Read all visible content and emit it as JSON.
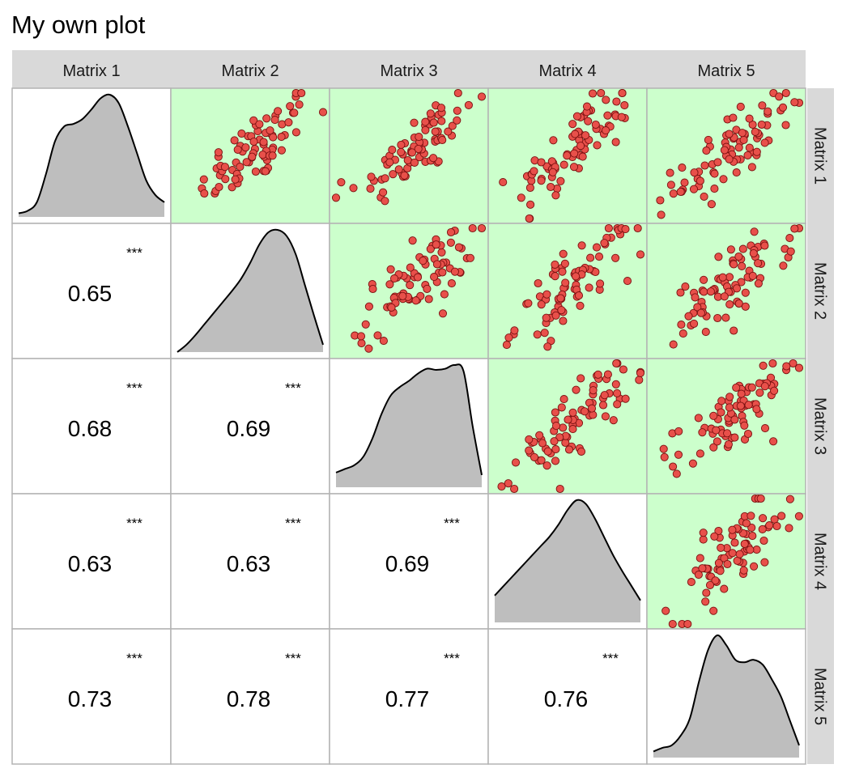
{
  "title": "My own plot",
  "chart_data": {
    "type": "scatter-matrix",
    "title": "My own plot",
    "variables": [
      "Matrix 1",
      "Matrix 2",
      "Matrix 3",
      "Matrix 4",
      "Matrix 5"
    ],
    "lower_panels": "correlation",
    "diagonal_panels": "density",
    "upper_panels": "scatter",
    "upper_panel_background": "#ccffcc",
    "point_fill": "#e8504a",
    "point_stroke": "#7a1010",
    "density_fill": "#bebebe",
    "correlations": [
      {
        "row": "Matrix 2",
        "col": "Matrix 1",
        "value": "0.65",
        "signif": "***"
      },
      {
        "row": "Matrix 3",
        "col": "Matrix 1",
        "value": "0.68",
        "signif": "***"
      },
      {
        "row": "Matrix 3",
        "col": "Matrix 2",
        "value": "0.69",
        "signif": "***"
      },
      {
        "row": "Matrix 4",
        "col": "Matrix 1",
        "value": "0.63",
        "signif": "***"
      },
      {
        "row": "Matrix 4",
        "col": "Matrix 2",
        "value": "0.63",
        "signif": "***"
      },
      {
        "row": "Matrix 4",
        "col": "Matrix 3",
        "value": "0.69",
        "signif": "***"
      },
      {
        "row": "Matrix 5",
        "col": "Matrix 1",
        "value": "0.73",
        "signif": "***"
      },
      {
        "row": "Matrix 5",
        "col": "Matrix 2",
        "value": "0.78",
        "signif": "***"
      },
      {
        "row": "Matrix 5",
        "col": "Matrix 3",
        "value": "0.77",
        "signif": "***"
      },
      {
        "row": "Matrix 5",
        "col": "Matrix 4",
        "value": "0.76",
        "signif": "***"
      }
    ],
    "densities": [
      [
        0.03,
        0.05,
        0.12,
        0.35,
        0.62,
        0.74,
        0.76,
        0.8,
        0.88,
        0.97,
        1.0,
        0.93,
        0.74,
        0.52,
        0.3,
        0.18,
        0.12
      ],
      [
        0.0,
        0.06,
        0.14,
        0.23,
        0.32,
        0.41,
        0.5,
        0.6,
        0.73,
        0.88,
        0.98,
        1.0,
        0.95,
        0.8,
        0.55,
        0.3,
        0.06
      ],
      [
        0.12,
        0.15,
        0.18,
        0.25,
        0.4,
        0.6,
        0.75,
        0.82,
        0.87,
        0.93,
        0.97,
        0.96,
        0.97,
        1.0,
        0.95,
        0.5,
        0.1
      ],
      [
        0.22,
        0.3,
        0.38,
        0.46,
        0.54,
        0.62,
        0.7,
        0.8,
        0.92,
        1.0,
        0.97,
        0.85,
        0.7,
        0.55,
        0.42,
        0.3,
        0.18
      ],
      [
        0.05,
        0.08,
        0.1,
        0.18,
        0.32,
        0.62,
        0.88,
        1.0,
        0.92,
        0.8,
        0.78,
        0.8,
        0.76,
        0.64,
        0.5,
        0.3,
        0.1
      ]
    ]
  }
}
